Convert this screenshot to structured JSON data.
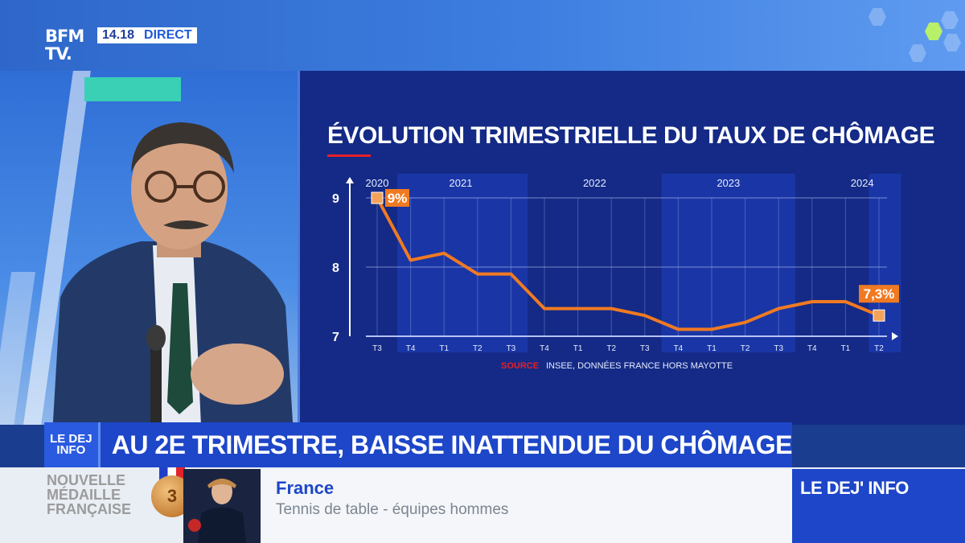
{
  "broadcast": {
    "logo_line1": "BFM",
    "logo_line2": "TV.",
    "time": "14.18",
    "live_label": "DIRECT"
  },
  "chart_data": {
    "type": "line",
    "title": "ÉVOLUTION TRIMESTRIELLE DU TAUX DE CHÔMAGE",
    "source_label": "SOURCE",
    "source_text": "INSEE, DONNÉES FRANCE HORS MAYOTTE",
    "x": [
      "T3",
      "T4",
      "T1",
      "T2",
      "T3",
      "T4",
      "T1",
      "T2",
      "T3",
      "T4",
      "T1",
      "T2",
      "T3",
      "T4",
      "T1",
      "T2"
    ],
    "year_labels": [
      {
        "label": "2020",
        "at": 0
      },
      {
        "label": "2021",
        "at": 2.5
      },
      {
        "label": "2022",
        "at": 6.5
      },
      {
        "label": "2023",
        "at": 10.5
      },
      {
        "label": "2024",
        "at": 14.5
      }
    ],
    "series": [
      {
        "values": [
          9.0,
          8.1,
          8.2,
          7.9,
          7.9,
          7.4,
          7.4,
          7.4,
          7.3,
          7.1,
          7.1,
          7.2,
          7.4,
          7.5,
          7.5,
          7.3
        ]
      }
    ],
    "y_ticks": [
      9,
      8,
      7
    ],
    "ylim": [
      7,
      9
    ],
    "annotations": [
      {
        "index": 0,
        "text": "9%"
      },
      {
        "index": 15,
        "text": "7,3%"
      }
    ],
    "colors": {
      "line": "#f07a22",
      "grid": "#c9d3ff",
      "marker": "#f4a25a"
    },
    "grid": true
  },
  "lower_third": {
    "show_line1": "LE DEJ",
    "show_line2": "INFO",
    "headline": "AU 2E TRIMESTRE, BAISSE INATTENDUE DU CHÔMAGE"
  },
  "ticker": {
    "left_label": "NOUVELLE MÉDAILLE FRANÇAISE",
    "medal_number": "3",
    "title": "France",
    "subtitle": "Tennis de table - équipes hommes",
    "brand": "LE DEJ' INFO"
  }
}
